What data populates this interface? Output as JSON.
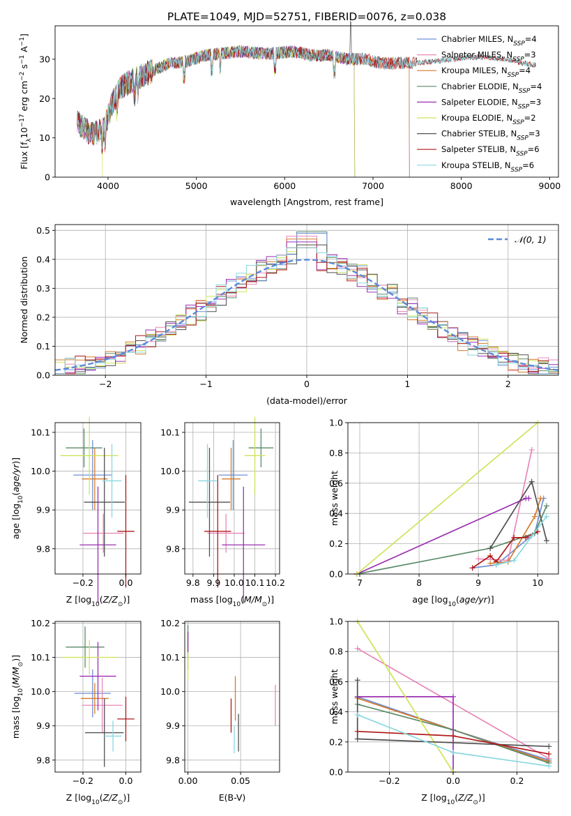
{
  "title": "PLATE=1049, MJD=52751, FIBERID=0076, z=0.038",
  "colors": {
    "c0": "#6b8fd6",
    "c1": "#e887b8",
    "c2": "#d57a2c",
    "c3": "#5b8a68",
    "c4": "#9b2fb0",
    "c5": "#cfe35a",
    "c6": "#505050",
    "c7": "#b01818",
    "c8": "#88d8e0",
    "normal": "#5a8ad8"
  },
  "chart_data": [
    {
      "id": "spectrum",
      "type": "line",
      "xlabel": "wavelength [Angstrom, rest frame]",
      "ylabel": "Flux [f_λ10⁻¹⁷ erg cm⁻² s⁻¹ A⁻¹]",
      "xlim": [
        3400,
        9100
      ],
      "ylim": [
        0,
        38.5
      ],
      "xticks": [
        4000,
        5000,
        6000,
        7000,
        8000,
        9000
      ],
      "yticks": [
        0,
        10,
        20,
        30
      ],
      "grid": false,
      "legend_position": "upper-right",
      "continuum": [
        [
          3650,
          14
        ],
        [
          3800,
          11
        ],
        [
          3950,
          12
        ],
        [
          4050,
          19
        ],
        [
          4150,
          23
        ],
        [
          4300,
          25
        ],
        [
          4500,
          27
        ],
        [
          4700,
          29
        ],
        [
          4900,
          29.5
        ],
        [
          5100,
          31
        ],
        [
          5300,
          31.5
        ],
        [
          5500,
          32
        ],
        [
          5700,
          31.5
        ],
        [
          5900,
          31.5
        ],
        [
          6100,
          32
        ],
        [
          6300,
          31
        ],
        [
          6500,
          31
        ],
        [
          6700,
          30
        ],
        [
          6900,
          30
        ],
        [
          7100,
          29
        ],
        [
          7300,
          29
        ],
        [
          7500,
          29
        ],
        [
          7700,
          29.5
        ],
        [
          7900,
          30
        ],
        [
          8100,
          30.5
        ],
        [
          8300,
          30.5
        ],
        [
          8500,
          30
        ],
        [
          8700,
          29
        ],
        [
          8850,
          28.5
        ]
      ],
      "series": [
        {
          "name": "Chabrier MILES, N_SSP=4",
          "color_key": "c0",
          "x_range": [
            3650,
            7410
          ]
        },
        {
          "name": "Salpeter MILES, N_SSP=3",
          "color_key": "c1",
          "x_range": [
            3650,
            7410
          ]
        },
        {
          "name": "Kroupa MILES, N_SSP=4",
          "color_key": "c2",
          "x_range": [
            3650,
            7410
          ]
        },
        {
          "name": "Chabrier ELODIE, N_SSP=4",
          "color_key": "c3",
          "x_range": [
            3650,
            6790
          ]
        },
        {
          "name": "Salpeter ELODIE, N_SSP=3",
          "color_key": "c4",
          "x_range": [
            3650,
            6790
          ]
        },
        {
          "name": "Kroupa ELODIE, N_SSP=2",
          "color_key": "c5",
          "x_range": [
            3650,
            6790
          ]
        },
        {
          "name": "Chabrier STELIB, N_SSP=3",
          "color_key": "c6",
          "x_range": [
            3650,
            8850
          ]
        },
        {
          "name": "Salpeter STELIB, N_SSP=6",
          "color_key": "c7",
          "x_range": [
            3650,
            8850
          ]
        },
        {
          "name": "Kroupa STELIB, N_SSP=6",
          "color_key": "c8",
          "x_range": [
            3650,
            8850
          ]
        }
      ]
    },
    {
      "id": "residuals",
      "type": "histogram",
      "xlabel": "(data-model)/error",
      "ylabel": "Normed distribution",
      "xlim": [
        -2.5,
        2.5
      ],
      "ylim": [
        0,
        0.52
      ],
      "xticks": [
        -2,
        -1,
        0,
        1,
        2
      ],
      "yticks": [
        0.0,
        0.1,
        0.2,
        0.3,
        0.4,
        0.5
      ],
      "grid": true,
      "bin_width": 0.1,
      "reference_curve": {
        "label": "𝒩(0, 1)",
        "mean": 0,
        "sigma": 1
      },
      "legend_position": "upper-right",
      "peak_values": [
        0.495,
        0.49,
        0.48,
        0.47,
        0.46,
        0.45,
        0.45,
        0.44,
        0.44
      ]
    },
    {
      "id": "Z-age",
      "type": "errorbar",
      "xlabel": "Z [log₁₀(Z/Z⊙)]",
      "ylabel": "age  [log₁₀(age/yr)]",
      "xlim": [
        -0.33,
        0.07
      ],
      "ylim": [
        9.735,
        10.125
      ],
      "xticks": [
        -0.2,
        0.0
      ],
      "yticks": [
        9.8,
        9.9,
        10.0,
        10.1
      ],
      "grid": true,
      "points": [
        {
          "color_key": "c0",
          "x": -0.155,
          "xerr": 0.09,
          "y": 9.99,
          "yerr": 0.09
        },
        {
          "color_key": "c1",
          "x": -0.105,
          "xerr": 0.095,
          "y": 9.84,
          "yerr": 0.05
        },
        {
          "color_key": "c2",
          "x": -0.145,
          "xerr": 0.06,
          "y": 9.98,
          "yerr": 0.08
        },
        {
          "color_key": "c3",
          "x": -0.195,
          "xerr": 0.085,
          "y": 10.06,
          "yerr": 0.05
        },
        {
          "color_key": "c4",
          "x": -0.13,
          "xerr": 0.085,
          "y": 9.81,
          "yerr": 0.15
        },
        {
          "color_key": "c5",
          "x": -0.17,
          "xerr": 0.135,
          "y": 10.04,
          "yerr": 0.1
        },
        {
          "color_key": "c6",
          "x": -0.1,
          "xerr": 0.095,
          "y": 9.92,
          "yerr": 0.14
        },
        {
          "color_key": "c7",
          "x": 0.0,
          "xerr": 0.04,
          "y": 9.845,
          "yerr": 0.145
        },
        {
          "color_key": "c8",
          "x": -0.065,
          "xerr": 0.045,
          "y": 9.975,
          "yerr": 0.095
        }
      ]
    },
    {
      "id": "mass-age",
      "type": "errorbar",
      "xlabel": "mass [log₁₀(M/M⊙)]",
      "ylabel": "",
      "xlim": [
        9.76,
        10.22
      ],
      "ylim": [
        9.735,
        10.125
      ],
      "xticks": [
        9.8,
        9.9,
        10.0,
        10.1,
        10.2
      ],
      "yticks": [
        9.8,
        9.9,
        10.0,
        10.1
      ],
      "grid": true,
      "points": [
        {
          "color_key": "c0",
          "x": 9.995,
          "xerr": 0.07,
          "y": 9.99,
          "yerr": 0.09
        },
        {
          "color_key": "c1",
          "x": 9.96,
          "xerr": 0.09,
          "y": 9.84,
          "yerr": 0.05
        },
        {
          "color_key": "c2",
          "x": 9.985,
          "xerr": 0.045,
          "y": 9.98,
          "yerr": 0.08
        },
        {
          "color_key": "c3",
          "x": 10.13,
          "xerr": 0.06,
          "y": 10.06,
          "yerr": 0.05
        },
        {
          "color_key": "c4",
          "x": 10.045,
          "xerr": 0.105,
          "y": 9.81,
          "yerr": 0.15
        },
        {
          "color_key": "c5",
          "x": 10.1,
          "xerr": 0.05,
          "y": 10.04,
          "yerr": 0.1
        },
        {
          "color_key": "c6",
          "x": 9.88,
          "xerr": 0.1,
          "y": 9.92,
          "yerr": 0.14
        },
        {
          "color_key": "c7",
          "x": 9.92,
          "xerr": 0.065,
          "y": 9.845,
          "yerr": 0.145
        },
        {
          "color_key": "c8",
          "x": 9.87,
          "xerr": 0.045,
          "y": 9.975,
          "yerr": 0.095
        }
      ]
    },
    {
      "id": "age-weight",
      "type": "line",
      "xlabel": "age  [log₁₀(age/yr)]",
      "ylabel": "mass weight",
      "xlim": [
        6.8,
        10.35
      ],
      "ylim": [
        0,
        1.0
      ],
      "xticks": [
        7,
        8,
        9,
        10
      ],
      "yticks": [
        0.0,
        0.2,
        0.4,
        0.6,
        0.8,
        1.0
      ],
      "grid": true,
      "marker": "+",
      "series": [
        {
          "color_key": "c0",
          "points": [
            [
              8.9,
              0.04
            ],
            [
              9.3,
              0.06
            ],
            [
              9.95,
              0.27
            ],
            [
              10.1,
              0.5
            ]
          ]
        },
        {
          "color_key": "c1",
          "points": [
            [
              9.0,
              0.1
            ],
            [
              9.5,
              0.09
            ],
            [
              9.9,
              0.82
            ]
          ]
        },
        {
          "color_key": "c2",
          "points": [
            [
              9.2,
              0.07
            ],
            [
              9.5,
              0.08
            ],
            [
              9.95,
              0.38
            ],
            [
              10.05,
              0.5
            ]
          ]
        },
        {
          "color_key": "c3",
          "points": [
            [
              6.95,
              0.0
            ],
            [
              9.2,
              0.17
            ],
            [
              9.95,
              0.27
            ],
            [
              10.15,
              0.45
            ]
          ]
        },
        {
          "color_key": "c4",
          "points": [
            [
              6.95,
              0.0
            ],
            [
              9.8,
              0.5
            ],
            [
              9.85,
              0.5
            ]
          ]
        },
        {
          "color_key": "c5",
          "points": [
            [
              6.95,
              0.0
            ],
            [
              10.0,
              1.0
            ]
          ]
        },
        {
          "color_key": "c6",
          "points": [
            [
              9.2,
              0.17
            ],
            [
              9.9,
              0.61
            ],
            [
              10.15,
              0.22
            ]
          ]
        },
        {
          "color_key": "c7",
          "points": [
            [
              8.9,
              0.04
            ],
            [
              9.2,
              0.12
            ],
            [
              9.3,
              0.08
            ],
            [
              9.6,
              0.24
            ],
            [
              9.8,
              0.24
            ],
            [
              10.0,
              0.28
            ]
          ]
        },
        {
          "color_key": "c8",
          "points": [
            [
              9.3,
              0.06
            ],
            [
              9.6,
              0.09
            ],
            [
              9.9,
              0.25
            ],
            [
              10.15,
              0.38
            ]
          ]
        }
      ]
    },
    {
      "id": "Z-mass",
      "type": "errorbar",
      "xlabel": "Z [log₁₀(Z/Z⊙)]",
      "ylabel": "mass [log₁₀(M/M⊙)]",
      "xlim": [
        -0.33,
        0.07
      ],
      "ylim": [
        9.765,
        10.205
      ],
      "xticks": [
        -0.2,
        0.0
      ],
      "yticks": [
        9.8,
        9.9,
        10.0,
        10.1,
        10.2
      ],
      "grid": true,
      "points": [
        {
          "color_key": "c0",
          "x": -0.155,
          "xerr": 0.085,
          "y": 9.995,
          "yerr": 0.07
        },
        {
          "color_key": "c1",
          "x": -0.11,
          "xerr": 0.095,
          "y": 9.96,
          "yerr": 0.08
        },
        {
          "color_key": "c2",
          "x": -0.145,
          "xerr": 0.065,
          "y": 9.98,
          "yerr": 0.045
        },
        {
          "color_key": "c3",
          "x": -0.19,
          "xerr": 0.09,
          "y": 10.13,
          "yerr": 0.06
        },
        {
          "color_key": "c4",
          "x": -0.13,
          "xerr": 0.085,
          "y": 10.045,
          "yerr": 0.1
        },
        {
          "color_key": "c5",
          "x": -0.17,
          "xerr": 0.13,
          "y": 10.1,
          "yerr": 0.05
        },
        {
          "color_key": "c6",
          "x": -0.1,
          "xerr": 0.09,
          "y": 9.88,
          "yerr": 0.1
        },
        {
          "color_key": "c7",
          "x": 0.0,
          "xerr": 0.04,
          "y": 9.92,
          "yerr": 0.065
        },
        {
          "color_key": "c8",
          "x": -0.06,
          "xerr": 0.04,
          "y": 9.87,
          "yerr": 0.045
        }
      ]
    },
    {
      "id": "ebv-mass",
      "type": "errorbar",
      "xlabel": "E(B-V)",
      "ylabel": "",
      "xlim": [
        -0.003,
        0.087
      ],
      "ylim": [
        9.765,
        10.205
      ],
      "xticks": [
        0.0,
        0.05
      ],
      "yticks": [
        9.8,
        9.9,
        10.0,
        10.1,
        10.2
      ],
      "grid": true,
      "points": [
        {
          "color_key": "c0",
          "x": 0.0,
          "xerr": 0.0,
          "y": 10.135,
          "yerr": 0.04
        },
        {
          "color_key": "c3",
          "x": 0.0,
          "xerr": 0.0,
          "y": 10.13,
          "yerr": 0.065
        },
        {
          "color_key": "c5",
          "x": 0.0,
          "xerr": 0.0,
          "y": 10.1,
          "yerr": 0.065
        },
        {
          "color_key": "c4",
          "x": 0.0,
          "xerr": 0.0,
          "y": 10.145,
          "yerr": 0.03
        },
        {
          "color_key": "c7",
          "x": 0.041,
          "xerr": 0.0,
          "y": 9.93,
          "yerr": 0.05
        },
        {
          "color_key": "c8",
          "x": 0.044,
          "xerr": 0.0,
          "y": 9.86,
          "yerr": 0.04
        },
        {
          "color_key": "c2",
          "x": 0.045,
          "xerr": 0.0,
          "y": 9.98,
          "yerr": 0.065
        },
        {
          "color_key": "c6",
          "x": 0.048,
          "xerr": 0.0,
          "y": 9.88,
          "yerr": 0.055
        },
        {
          "color_key": "c1",
          "x": 0.083,
          "xerr": 0.0,
          "y": 9.96,
          "yerr": 0.06
        }
      ]
    },
    {
      "id": "Z-weight",
      "type": "line",
      "xlabel": "Z [log₁₀(Z/Z⊙)]",
      "ylabel": "mass weight",
      "xlim": [
        -0.33,
        0.33
      ],
      "ylim": [
        0,
        1.0
      ],
      "xticks": [
        -0.2,
        0.0,
        0.2
      ],
      "yticks": [
        0.0,
        0.2,
        0.4,
        0.6,
        0.8,
        1.0
      ],
      "grid": true,
      "marker": "+",
      "series": [
        {
          "color_key": "c0",
          "points": [
            [
              -0.3,
              0.5
            ],
            [
              0.0,
              0.28
            ],
            [
              0.3,
              0.08
            ]
          ]
        },
        {
          "color_key": "c1",
          "points": [
            [
              -0.3,
              0.82
            ],
            [
              0.3,
              0.09
            ]
          ]
        },
        {
          "color_key": "c2",
          "points": [
            [
              -0.3,
              0.49
            ],
            [
              0.3,
              0.07
            ]
          ]
        },
        {
          "color_key": "c3",
          "points": [
            [
              -0.3,
              0.45
            ],
            [
              0.0,
              0.28
            ],
            [
              0.3,
              0.06
            ]
          ]
        },
        {
          "color_key": "c4",
          "points": [
            [
              -0.3,
              0.5
            ],
            [
              0.0,
              0.5
            ],
            [
              0.0,
              0.0
            ]
          ]
        },
        {
          "color_key": "c5",
          "points": [
            [
              -0.3,
              1.0
            ],
            [
              0.0,
              0.0
            ]
          ]
        },
        {
          "color_key": "c6",
          "points": [
            [
              -0.3,
              0.61
            ],
            [
              -0.3,
              0.22
            ],
            [
              0.3,
              0.17
            ]
          ]
        },
        {
          "color_key": "c7",
          "points": [
            [
              -0.3,
              0.27
            ],
            [
              0.0,
              0.24
            ],
            [
              0.3,
              0.12
            ]
          ]
        },
        {
          "color_key": "c8",
          "points": [
            [
              -0.3,
              0.38
            ],
            [
              0.0,
              0.13
            ],
            [
              0.3,
              0.04
            ]
          ]
        }
      ]
    }
  ]
}
